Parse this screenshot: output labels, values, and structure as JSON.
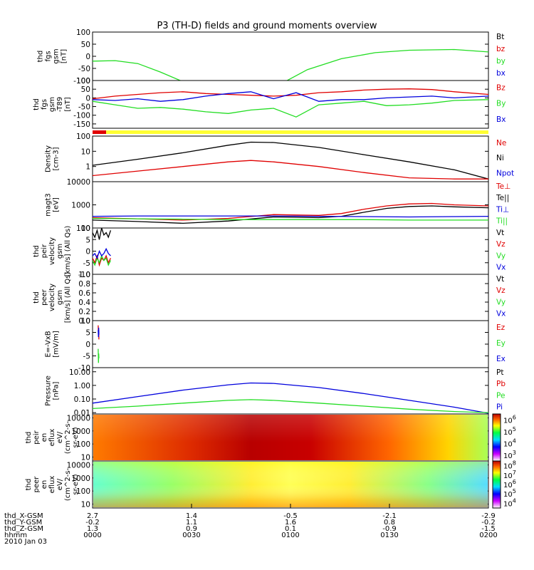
{
  "title": "P3 (TH-D) fields and ground moments overview",
  "bottom": {
    "rows": [
      "thd_X-GSM",
      "thd_Y-GSM",
      "thd_Z-GSM",
      "hhmm"
    ],
    "date": "2010 Jan 03",
    "tick_values": [
      [
        "2.7",
        "1.4",
        "-0.5",
        "-2.1",
        "-2.9"
      ],
      [
        "-0.2",
        "1.1",
        "1.6",
        "0.8",
        "-0.2"
      ],
      [
        "1.3",
        "0.9",
        "0.1",
        "-0.9",
        "-1.5"
      ],
      [
        "0000",
        "0030",
        "0100",
        "0130",
        "0200"
      ]
    ]
  },
  "colors": {
    "black": "#000000",
    "red": "#e00000",
    "green": "#22dd22",
    "blue": "#0000dd",
    "yellow": "#ffff33"
  },
  "chart_data": [
    {
      "type": "line",
      "panel": "fgs",
      "ylabel": [
        "thd",
        "fgs",
        "gsm",
        "[nT]"
      ],
      "ylim": [
        -100,
        100
      ],
      "yticks": [
        "100",
        "50",
        "0",
        "-50",
        "-100"
      ],
      "legend": [
        "Bt",
        "bz",
        "by",
        "bx"
      ],
      "legend_colors": [
        "#000000",
        "#e00000",
        "#22dd22",
        "#0000dd"
      ],
      "series": [
        {
          "name": "by",
          "x": [
            0,
            10,
            20,
            30,
            40
          ],
          "y": [
            -20,
            -18,
            -30,
            -65,
            -105
          ]
        },
        {
          "name": "by",
          "x": [
            85,
            95,
            110,
            125,
            140,
            160,
            175
          ],
          "y": [
            -105,
            -55,
            -10,
            15,
            25,
            28,
            18
          ]
        }
      ]
    },
    {
      "type": "line",
      "panel": "fgs-t89",
      "ylabel": [
        "thd",
        "fgs",
        "gsm",
        "-T89",
        "[nT]"
      ],
      "ylim": [
        -175,
        100
      ],
      "yticks": [
        "100",
        "50",
        "0",
        "-50",
        "-100",
        "-150"
      ],
      "legend": [
        "Bz",
        "By",
        "Bx"
      ],
      "legend_colors": [
        "#e00000",
        "#22dd22",
        "#0000dd"
      ],
      "series": [
        {
          "name": "Bz",
          "x": [
            0,
            10,
            20,
            30,
            40,
            50,
            60,
            70,
            80,
            90,
            100,
            110,
            120,
            130,
            140,
            150,
            160,
            175
          ],
          "y": [
            -5,
            10,
            20,
            30,
            35,
            25,
            20,
            15,
            10,
            15,
            30,
            35,
            45,
            50,
            52,
            48,
            35,
            20
          ]
        },
        {
          "name": "By",
          "x": [
            0,
            10,
            20,
            30,
            40,
            50,
            60,
            70,
            80,
            90,
            100,
            110,
            120,
            130,
            140,
            150,
            160,
            175
          ],
          "y": [
            -20,
            -40,
            -60,
            -55,
            -65,
            -80,
            -90,
            -70,
            -60,
            -110,
            -40,
            -30,
            -20,
            -45,
            -40,
            -30,
            -15,
            -10
          ]
        },
        {
          "name": "Bx",
          "x": [
            0,
            10,
            20,
            30,
            40,
            50,
            60,
            70,
            80,
            90,
            100,
            110,
            120,
            130,
            140,
            150,
            160,
            175
          ],
          "y": [
            -10,
            -15,
            -5,
            -20,
            -10,
            10,
            25,
            35,
            -5,
            30,
            -20,
            -10,
            -10,
            0,
            5,
            10,
            0,
            10
          ]
        }
      ]
    },
    {
      "type": "bar-strip",
      "panel": "mode",
      "segments": [
        {
          "color": "#e00000",
          "from": 0,
          "to": 6
        },
        {
          "color": "#ffff33",
          "from": 6,
          "to": 175
        }
      ]
    },
    {
      "type": "line",
      "panel": "density",
      "ylabel": [
        "Density",
        "[cm-3]"
      ],
      "yscale": "log",
      "ylim": [
        0.1,
        100
      ],
      "yticks": [
        "100",
        "10",
        "1"
      ],
      "legend": [
        "Ne",
        "Ni",
        "Npot"
      ],
      "legend_colors": [
        "#e00000",
        "#000000",
        "#0000dd"
      ],
      "series": [
        {
          "name": "Ni",
          "x": [
            0,
            20,
            40,
            60,
            70,
            80,
            100,
            120,
            140,
            160,
            175
          ],
          "y": [
            1.2,
            3,
            8,
            25,
            40,
            38,
            18,
            6,
            2,
            0.6,
            0.15
          ]
        },
        {
          "name": "Ne",
          "x": [
            0,
            20,
            40,
            60,
            70,
            80,
            100,
            120,
            140,
            160,
            175
          ],
          "y": [
            0.25,
            0.5,
            1,
            2,
            2.5,
            2,
            1,
            0.4,
            0.18,
            0.15,
            0.15
          ]
        }
      ]
    },
    {
      "type": "line",
      "panel": "temperature",
      "ylabel": [
        "magt3",
        "[eV]"
      ],
      "yscale": "log",
      "ylim": [
        100,
        10000
      ],
      "yticks": [
        "10000",
        "1000",
        "100"
      ],
      "legend": [
        "Te⊥",
        "Te||",
        "Ti⊥",
        "Ti||"
      ],
      "legend_colors": [
        "#e00000",
        "#000000",
        "#0000dd",
        "#22dd22"
      ],
      "series": [
        {
          "name": "Te⊥",
          "x": [
            0,
            20,
            40,
            60,
            80,
            100,
            110,
            120,
            130,
            140,
            150,
            160,
            175
          ],
          "y": [
            280,
            250,
            220,
            260,
            380,
            350,
            420,
            650,
            900,
            1100,
            1150,
            1000,
            900
          ]
        },
        {
          "name": "Te||",
          "x": [
            0,
            20,
            40,
            60,
            80,
            100,
            110,
            120,
            130,
            140,
            150,
            160,
            175
          ],
          "y": [
            220,
            190,
            160,
            200,
            300,
            280,
            320,
            480,
            700,
            850,
            900,
            820,
            750
          ]
        },
        {
          "name": "Ti⊥",
          "x": [
            0,
            20,
            40,
            60,
            80,
            100,
            120,
            140,
            160,
            175
          ],
          "y": [
            320,
            330,
            330,
            330,
            330,
            320,
            310,
            300,
            310,
            320
          ]
        },
        {
          "name": "Ti||",
          "x": [
            0,
            20,
            40,
            60,
            80,
            100,
            120,
            140,
            160,
            175
          ],
          "y": [
            260,
            250,
            240,
            230,
            230,
            230,
            230,
            220,
            220,
            220
          ]
        }
      ]
    },
    {
      "type": "line",
      "panel": "peir-velocity",
      "ylabel": [
        "thd",
        "peir",
        "velocity",
        "gsm",
        "[km/s] (All Qs)"
      ],
      "ylim": [
        -10,
        10
      ],
      "yticks": [
        "10",
        "5",
        "0",
        "-5",
        "-10"
      ],
      "legend": [
        "Vt",
        "Vz",
        "Vy",
        "Vx"
      ],
      "legend_colors": [
        "#000000",
        "#e00000",
        "#22dd22",
        "#0000dd"
      ],
      "series": [
        {
          "name": "Vt",
          "x": [
            0,
            1,
            2,
            3,
            4,
            5,
            6,
            7,
            8
          ],
          "y": [
            8,
            6,
            9,
            5,
            10,
            7,
            8,
            6,
            9
          ]
        },
        {
          "name": "Vz",
          "x": [
            0,
            1,
            2,
            3,
            4,
            5,
            6,
            7,
            8
          ],
          "y": [
            -3,
            -5,
            -2,
            -6,
            -3,
            -4,
            -2,
            -5,
            -3
          ]
        },
        {
          "name": "Vy",
          "x": [
            0,
            1,
            2,
            3,
            4,
            5,
            6,
            7,
            8
          ],
          "y": [
            -4,
            -6,
            -3,
            -5,
            -2,
            -4,
            -3,
            -6,
            -4
          ]
        },
        {
          "name": "Vx",
          "x": [
            0,
            1,
            2,
            3,
            4,
            5,
            6,
            7,
            8
          ],
          "y": [
            -2,
            -1,
            -3,
            0,
            -2,
            -1,
            1,
            -1,
            -2
          ]
        }
      ]
    },
    {
      "type": "line",
      "panel": "peer-velocity",
      "ylabel": [
        "thd",
        "peer",
        "velocity",
        "gsm",
        "[km/s] (All Qs)"
      ],
      "ylim": [
        0,
        1.0
      ],
      "yticks": [
        "1.0",
        "0.8",
        "0.6",
        "0.4",
        "0.2",
        "0.0"
      ],
      "legend": [
        "Vt",
        "Vz",
        "Vy",
        "Vx"
      ],
      "legend_colors": [
        "#000000",
        "#e00000",
        "#22dd22",
        "#0000dd"
      ],
      "series": []
    },
    {
      "type": "line",
      "panel": "efield",
      "ylabel": [
        "E=-VxB",
        "[mV/m]"
      ],
      "ylim": [
        -10,
        10
      ],
      "yticks": [
        "10",
        "5",
        "0",
        "-5",
        "-10"
      ],
      "legend": [
        "Ez",
        "Ey",
        "Ex"
      ],
      "legend_colors": [
        "#e00000",
        "#22dd22",
        "#0000dd"
      ],
      "series": [
        {
          "name": "Ez",
          "x": [
            2.5,
            2.6,
            2.7,
            2.8
          ],
          "y": [
            8,
            4,
            6,
            2
          ]
        },
        {
          "name": "Ey",
          "x": [
            2.5,
            2.6,
            2.7,
            2.8
          ],
          "y": [
            -2,
            -8,
            -4,
            -6
          ]
        },
        {
          "name": "Ex",
          "x": [
            2.5,
            2.6,
            2.7,
            2.8
          ],
          "y": [
            6,
            3,
            7,
            4
          ]
        }
      ]
    },
    {
      "type": "line",
      "panel": "pressure",
      "ylabel": [
        "Pressure",
        "[nPa]"
      ],
      "yscale": "log",
      "ylim": [
        0.008,
        20
      ],
      "yticks": [
        "10.00",
        "1.00",
        "0.10",
        "0.01"
      ],
      "legend": [
        "Pt",
        "Pb",
        "Pe",
        "Pi"
      ],
      "legend_colors": [
        "#000000",
        "#e00000",
        "#22dd22",
        "#0000dd"
      ],
      "series": [
        {
          "name": "Pi",
          "x": [
            0,
            20,
            40,
            60,
            70,
            80,
            100,
            120,
            140,
            160,
            175
          ],
          "y": [
            0.05,
            0.15,
            0.45,
            1.1,
            1.5,
            1.4,
            0.7,
            0.25,
            0.08,
            0.025,
            0.009
          ]
        },
        {
          "name": "Pe",
          "x": [
            0,
            20,
            40,
            60,
            70,
            80,
            100,
            120,
            140,
            160,
            175
          ],
          "y": [
            0.02,
            0.03,
            0.05,
            0.08,
            0.09,
            0.08,
            0.05,
            0.03,
            0.018,
            0.012,
            0.01
          ]
        }
      ]
    },
    {
      "type": "heatmap",
      "panel": "peir-eflux",
      "ylabel": [
        "thd",
        "peir",
        "en",
        "eflux",
        "eV/",
        "(cm^2-s-",
        "sr-eV)"
      ],
      "yscale": "log",
      "ylim": [
        5,
        20000
      ],
      "yticks": [
        "10000",
        "1000",
        "100",
        "10"
      ],
      "colorbar_ticks": [
        "10^6",
        "10^5",
        "10^4",
        "10^3"
      ]
    },
    {
      "type": "heatmap",
      "panel": "peer-eflux",
      "ylabel": [
        "thd",
        "peer",
        "en",
        "eflux",
        "eV/",
        "(cm^2-s-",
        "sr-eV)"
      ],
      "yscale": "log",
      "ylim": [
        5,
        20000
      ],
      "yticks": [
        "10000",
        "1000",
        "100",
        "10"
      ],
      "colorbar_ticks": [
        "10^8",
        "10^7",
        "10^6",
        "10^5",
        "10^4"
      ]
    }
  ]
}
